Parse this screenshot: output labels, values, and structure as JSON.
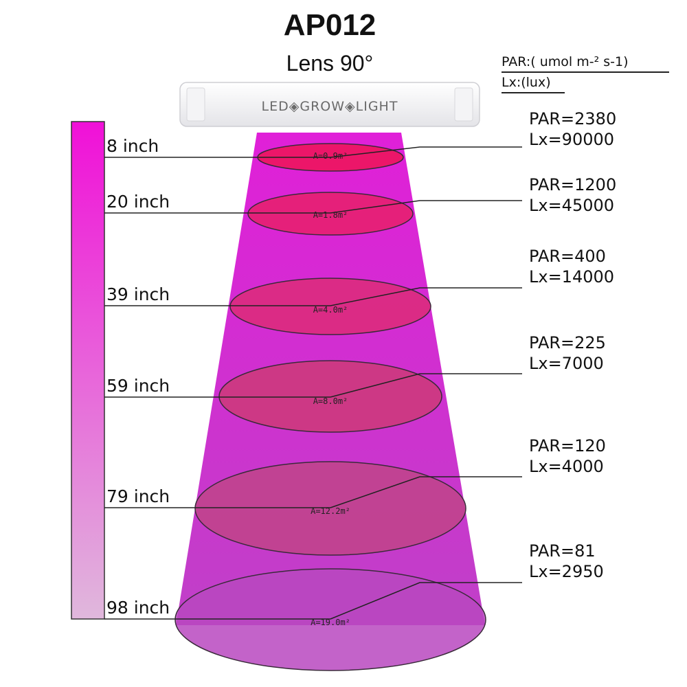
{
  "header": {
    "title": "AP012",
    "subtitle": "Lens 90°"
  },
  "units": {
    "par": "PAR:( umol m-² s-1)",
    "lx": "Lx:(lux)"
  },
  "fixture": {
    "label": "LED◈GROW◈LIGHT"
  },
  "colors": {
    "beam_top": "#e020d8",
    "beam_bottom": "#c040c8",
    "bar_top": "#f010d8",
    "bar_bottom": "#e0b8dc"
  },
  "levels": [
    {
      "distance": "8 inch",
      "area": "A=0.9m²",
      "par": "PAR=2380",
      "lx": "Lx=90000",
      "fill": "#ee1456"
    },
    {
      "distance": "20 inch",
      "area": "A=1.8m²",
      "par": "PAR=1200",
      "lx": "Lx=45000",
      "fill": "#e6206a"
    },
    {
      "distance": "39 inch",
      "area": "A=4.0m²",
      "par": "PAR=400",
      "lx": "Lx=14000",
      "fill": "#dc2c78"
    },
    {
      "distance": "59 inch",
      "area": "A=8.0m²",
      "par": "PAR=225",
      "lx": "Lx=7000",
      "fill": "#cc3a78"
    },
    {
      "distance": "79 inch",
      "area": "A=12.2m²",
      "par": "PAR=120",
      "lx": "Lx=4000",
      "fill": "#c04488"
    },
    {
      "distance": "98 inch",
      "area": "A=19.0m²",
      "par": "PAR=81",
      "lx": "Lx=2950",
      "fill": "#b948c0"
    }
  ]
}
